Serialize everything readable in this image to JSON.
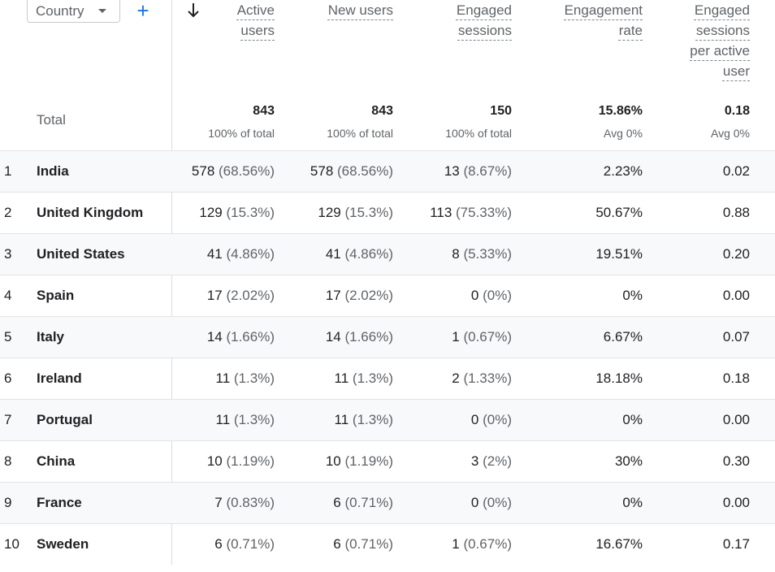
{
  "toolbar": {
    "dimension_label": "Country",
    "add_icon": "plus-icon",
    "sort_icon": "arrow-down-icon"
  },
  "columns": [
    {
      "key": "active",
      "lines": [
        "Active",
        "users"
      ]
    },
    {
      "key": "new",
      "lines": [
        "New users"
      ]
    },
    {
      "key": "engaged",
      "lines": [
        "Engaged",
        "sessions"
      ]
    },
    {
      "key": "rate",
      "lines": [
        "Engagement",
        "rate"
      ]
    },
    {
      "key": "per_user",
      "lines": [
        "Engaged",
        "sessions",
        "per active",
        "user"
      ]
    }
  ],
  "total": {
    "label": "Total",
    "values": [
      "843",
      "843",
      "150",
      "15.86%",
      "0.18"
    ],
    "subs": [
      "100% of total",
      "100% of total",
      "100% of total",
      "Avg 0%",
      "Avg 0%"
    ]
  },
  "rows": [
    {
      "idx": "1",
      "country": "India",
      "active": [
        "578",
        "(68.56%)"
      ],
      "new": [
        "578",
        "(68.56%)"
      ],
      "engaged": [
        "13",
        "(8.67%)"
      ],
      "rate": "2.23%",
      "per_user": "0.02"
    },
    {
      "idx": "2",
      "country": "United Kingdom",
      "active": [
        "129",
        "(15.3%)"
      ],
      "new": [
        "129",
        "(15.3%)"
      ],
      "engaged": [
        "113",
        "(75.33%)"
      ],
      "rate": "50.67%",
      "per_user": "0.88"
    },
    {
      "idx": "3",
      "country": "United States",
      "active": [
        "41",
        "(4.86%)"
      ],
      "new": [
        "41",
        "(4.86%)"
      ],
      "engaged": [
        "8",
        "(5.33%)"
      ],
      "rate": "19.51%",
      "per_user": "0.20"
    },
    {
      "idx": "4",
      "country": "Spain",
      "active": [
        "17",
        "(2.02%)"
      ],
      "new": [
        "17",
        "(2.02%)"
      ],
      "engaged": [
        "0",
        "(0%)"
      ],
      "rate": "0%",
      "per_user": "0.00"
    },
    {
      "idx": "5",
      "country": "Italy",
      "active": [
        "14",
        "(1.66%)"
      ],
      "new": [
        "14",
        "(1.66%)"
      ],
      "engaged": [
        "1",
        "(0.67%)"
      ],
      "rate": "6.67%",
      "per_user": "0.07"
    },
    {
      "idx": "6",
      "country": "Ireland",
      "active": [
        "11",
        "(1.3%)"
      ],
      "new": [
        "11",
        "(1.3%)"
      ],
      "engaged": [
        "2",
        "(1.33%)"
      ],
      "rate": "18.18%",
      "per_user": "0.18"
    },
    {
      "idx": "7",
      "country": "Portugal",
      "active": [
        "11",
        "(1.3%)"
      ],
      "new": [
        "11",
        "(1.3%)"
      ],
      "engaged": [
        "0",
        "(0%)"
      ],
      "rate": "0%",
      "per_user": "0.00"
    },
    {
      "idx": "8",
      "country": "China",
      "active": [
        "10",
        "(1.19%)"
      ],
      "new": [
        "10",
        "(1.19%)"
      ],
      "engaged": [
        "3",
        "(2%)"
      ],
      "rate": "30%",
      "per_user": "0.30"
    },
    {
      "idx": "9",
      "country": "France",
      "active": [
        "7",
        "(0.83%)"
      ],
      "new": [
        "6",
        "(0.71%)"
      ],
      "engaged": [
        "0",
        "(0%)"
      ],
      "rate": "0%",
      "per_user": "0.00"
    },
    {
      "idx": "10",
      "country": "Sweden",
      "active": [
        "6",
        "(0.71%)"
      ],
      "new": [
        "6",
        "(0.71%)"
      ],
      "engaged": [
        "1",
        "(0.67%)"
      ],
      "rate": "16.67%",
      "per_user": "0.17"
    }
  ]
}
